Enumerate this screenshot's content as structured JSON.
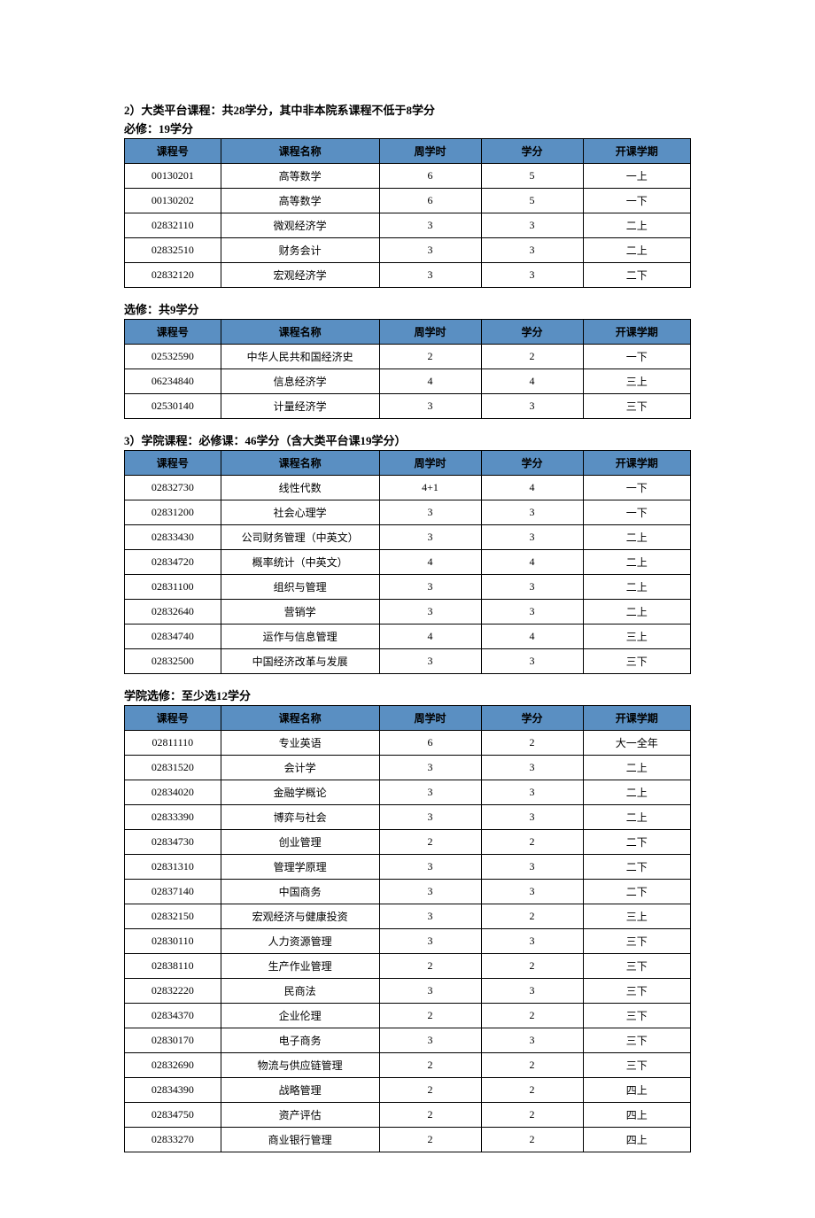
{
  "headers": {
    "course_id": "课程号",
    "course_name": "课程名称",
    "weekly_hours": "周学时",
    "credits": "学分",
    "semester": "开课学期"
  },
  "sections": [
    {
      "heading": "2）大类平台课程：共28学分，其中非本院系课程不低于8学分",
      "sub": "必修：19学分",
      "rows": [
        [
          "00130201",
          "高等数学",
          "6",
          "5",
          "一上"
        ],
        [
          "00130202",
          "高等数学",
          "6",
          "5",
          "一下"
        ],
        [
          "02832110",
          "微观经济学",
          "3",
          "3",
          "二上"
        ],
        [
          "02832510",
          "财务会计",
          "3",
          "3",
          "二上"
        ],
        [
          "02832120",
          "宏观经济学",
          "3",
          "3",
          "二下"
        ]
      ]
    },
    {
      "heading": "",
      "sub": "选修：共9学分",
      "rows": [
        [
          "02532590",
          "中华人民共和国经济史",
          "2",
          "2",
          "一下"
        ],
        [
          "06234840",
          "信息经济学",
          "4",
          "4",
          "三上"
        ],
        [
          "02530140",
          "计量经济学",
          "3",
          "3",
          "三下"
        ]
      ]
    },
    {
      "heading": "3）学院课程：必修课：46学分（含大类平台课19学分）",
      "sub": "",
      "rows": [
        [
          "02832730",
          "线性代数",
          "4+1",
          "4",
          "一下"
        ],
        [
          "02831200",
          "社会心理学",
          "3",
          "3",
          "一下"
        ],
        [
          "02833430",
          "公司财务管理（中英文）",
          "3",
          "3",
          "二上"
        ],
        [
          "02834720",
          "概率统计（中英文）",
          "4",
          "4",
          "二上"
        ],
        [
          "02831100",
          "组织与管理",
          "3",
          "3",
          "二上"
        ],
        [
          "02832640",
          "营销学",
          "3",
          "3",
          "二上"
        ],
        [
          "02834740",
          "运作与信息管理",
          "4",
          "4",
          "三上"
        ],
        [
          "02832500",
          "中国经济改革与发展",
          "3",
          "3",
          "三下"
        ]
      ]
    },
    {
      "heading": "",
      "sub": "学院选修：至少选12学分",
      "rows": [
        [
          "02811110",
          "专业英语",
          "6",
          "2",
          "大一全年"
        ],
        [
          "02831520",
          "会计学",
          "3",
          "3",
          "二上"
        ],
        [
          "02834020",
          "金融学概论",
          "3",
          "3",
          "二上"
        ],
        [
          "02833390",
          "博弈与社会",
          "3",
          "3",
          "二上"
        ],
        [
          "02834730",
          "创业管理",
          "2",
          "2",
          "二下"
        ],
        [
          "02831310",
          "管理学原理",
          "3",
          "3",
          "二下"
        ],
        [
          "02837140",
          "中国商务",
          "3",
          "3",
          "二下"
        ],
        [
          "02832150",
          "宏观经济与健康投资",
          "3",
          "2",
          "三上"
        ],
        [
          "02830110",
          "人力资源管理",
          "3",
          "3",
          "三下"
        ],
        [
          "02838110",
          "生产作业管理",
          "2",
          "2",
          "三下"
        ],
        [
          "02832220",
          "民商法",
          "3",
          "3",
          "三下"
        ],
        [
          "02834370",
          "企业伦理",
          "2",
          "2",
          "三下"
        ],
        [
          "02830170",
          "电子商务",
          "3",
          "3",
          "三下"
        ],
        [
          "02832690",
          "物流与供应链管理",
          "2",
          "2",
          "三下"
        ],
        [
          "02834390",
          "战略管理",
          "2",
          "2",
          "四上"
        ],
        [
          "02834750",
          "资产评估",
          "2",
          "2",
          "四上"
        ],
        [
          "02833270",
          "商业银行管理",
          "2",
          "2",
          "四上"
        ]
      ]
    }
  ]
}
